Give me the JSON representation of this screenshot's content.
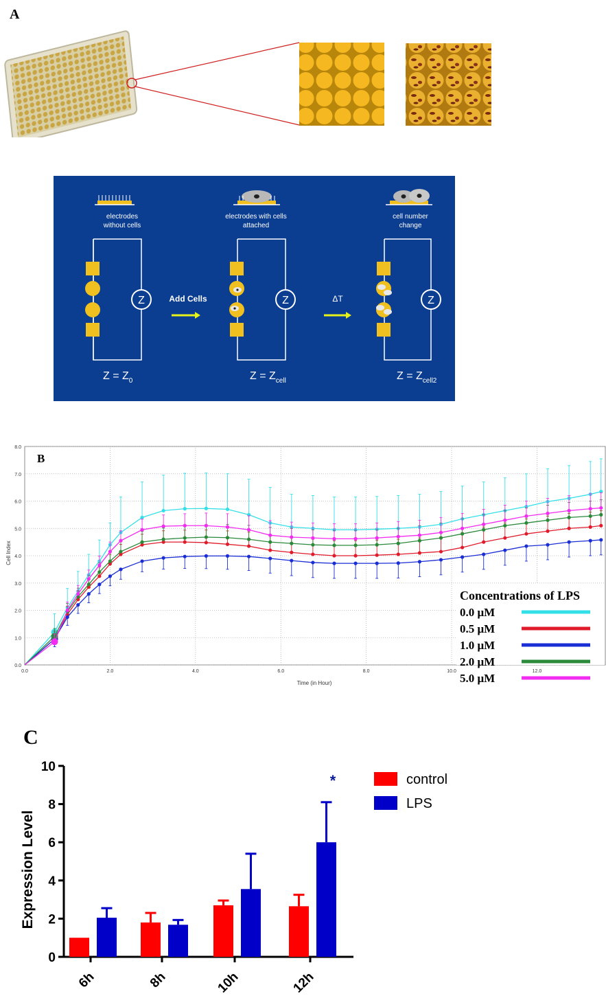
{
  "panel_a": {
    "letter": "A",
    "schematic": {
      "stage1": {
        "caption_line1": "electrodes",
        "caption_line2": "without cells",
        "formula_main": "Z = Z",
        "formula_sub": "0"
      },
      "stage2": {
        "caption_line1": "electrodes with cells",
        "caption_line2": "attached",
        "formula_main": "Z = Z",
        "formula_sub": "cell"
      },
      "stage3": {
        "caption_line1": "cell number",
        "caption_line2": "change",
        "formula_main": "Z = Z",
        "formula_sub": "cell2"
      },
      "arrow1_label": "Add Cells",
      "arrow2_label": "ΔT",
      "impedance_symbol": "Z"
    }
  },
  "panel_b": {
    "letter": "B",
    "legend_title": "Concentrations of LPS",
    "colors": {
      "c0": "#33e0e8",
      "c05": "#e01c2c",
      "c1": "#1a2ed6",
      "c2": "#2a8a3a",
      "c5": "#f22cf0"
    }
  },
  "panel_c": {
    "letter": "C"
  },
  "chart_data": [
    {
      "type": "line",
      "title": "",
      "xlabel": "Time (in Hour)",
      "ylabel": "Cell Index",
      "xlim": [
        0,
        13.6
      ],
      "ylim": [
        0,
        8
      ],
      "xticks": [
        "0.0",
        "2.0",
        "4.0",
        "6.0",
        "8.0",
        "10.0",
        "12.0"
      ],
      "yticks": [
        "0.0",
        "1.0",
        "2.0",
        "3.0",
        "4.0",
        "5.0",
        "6.0",
        "7.0",
        "8.0"
      ],
      "grid": true,
      "legend_position": "lower-right",
      "x": [
        0,
        0.7,
        1.0,
        1.25,
        1.5,
        1.75,
        2.0,
        2.25,
        2.75,
        3.25,
        3.75,
        4.25,
        4.75,
        5.25,
        5.75,
        6.25,
        6.75,
        7.25,
        7.75,
        8.25,
        8.75,
        9.25,
        9.75,
        10.25,
        10.75,
        11.25,
        11.75,
        12.25,
        12.75,
        13.25,
        13.5
      ],
      "series": [
        {
          "name": "0.0 μM",
          "values": [
            0,
            1.2,
            2.1,
            2.7,
            3.3,
            3.8,
            4.4,
            4.85,
            5.4,
            5.65,
            5.72,
            5.73,
            5.7,
            5.5,
            5.2,
            5.05,
            5.0,
            4.95,
            4.95,
            4.97,
            5.0,
            5.05,
            5.15,
            5.35,
            5.5,
            5.65,
            5.8,
            5.98,
            6.1,
            6.25,
            6.35
          ]
        },
        {
          "name": "0.5 μM",
          "values": [
            0,
            0.95,
            1.85,
            2.4,
            2.85,
            3.25,
            3.7,
            4.05,
            4.4,
            4.5,
            4.5,
            4.48,
            4.42,
            4.35,
            4.2,
            4.12,
            4.05,
            4.0,
            4.0,
            4.02,
            4.05,
            4.1,
            4.15,
            4.3,
            4.5,
            4.65,
            4.8,
            4.9,
            5.0,
            5.05,
            5.1
          ]
        },
        {
          "name": "1.0 μM",
          "values": [
            0,
            0.95,
            1.75,
            2.2,
            2.6,
            2.95,
            3.25,
            3.5,
            3.8,
            3.92,
            3.97,
            3.99,
            3.99,
            3.97,
            3.9,
            3.82,
            3.75,
            3.72,
            3.72,
            3.72,
            3.73,
            3.78,
            3.85,
            3.95,
            4.05,
            4.2,
            4.35,
            4.4,
            4.5,
            4.55,
            4.58
          ]
        },
        {
          "name": "2.0 μM",
          "values": [
            0,
            1.05,
            1.95,
            2.5,
            2.95,
            3.4,
            3.8,
            4.15,
            4.5,
            4.6,
            4.65,
            4.68,
            4.66,
            4.6,
            4.5,
            4.45,
            4.4,
            4.38,
            4.38,
            4.4,
            4.45,
            4.55,
            4.65,
            4.8,
            4.95,
            5.1,
            5.2,
            5.3,
            5.4,
            5.45,
            5.5
          ]
        },
        {
          "name": "5.0 μM",
          "values": [
            0,
            0.85,
            2.0,
            2.6,
            3.15,
            3.65,
            4.15,
            4.55,
            4.95,
            5.08,
            5.1,
            5.1,
            5.05,
            4.95,
            4.75,
            4.68,
            4.65,
            4.62,
            4.62,
            4.65,
            4.7,
            4.75,
            4.85,
            5.0,
            5.15,
            5.3,
            5.45,
            5.55,
            5.65,
            5.72,
            5.75
          ]
        }
      ]
    },
    {
      "type": "bar",
      "title": "",
      "xlabel": "",
      "ylabel": "Expression Level",
      "ylim": [
        0,
        10
      ],
      "yticks": [
        "0",
        "2",
        "4",
        "6",
        "8",
        "10"
      ],
      "categories": [
        "6h",
        "8h",
        "10h",
        "12h"
      ],
      "legend_position": "top-right",
      "series": [
        {
          "name": "control",
          "values": [
            1.0,
            1.8,
            2.7,
            2.65
          ],
          "errors": [
            0,
            0.5,
            0.25,
            0.6
          ],
          "color": "#ff0000"
        },
        {
          "name": "LPS",
          "values": [
            2.05,
            1.68,
            3.55,
            6.0
          ],
          "errors": [
            0.5,
            0.25,
            1.85,
            2.1
          ],
          "color": "#0000c8"
        }
      ],
      "annotations": [
        {
          "category": "12h",
          "series": "LPS",
          "text": "*",
          "color": "#0a1a9a"
        }
      ]
    }
  ]
}
